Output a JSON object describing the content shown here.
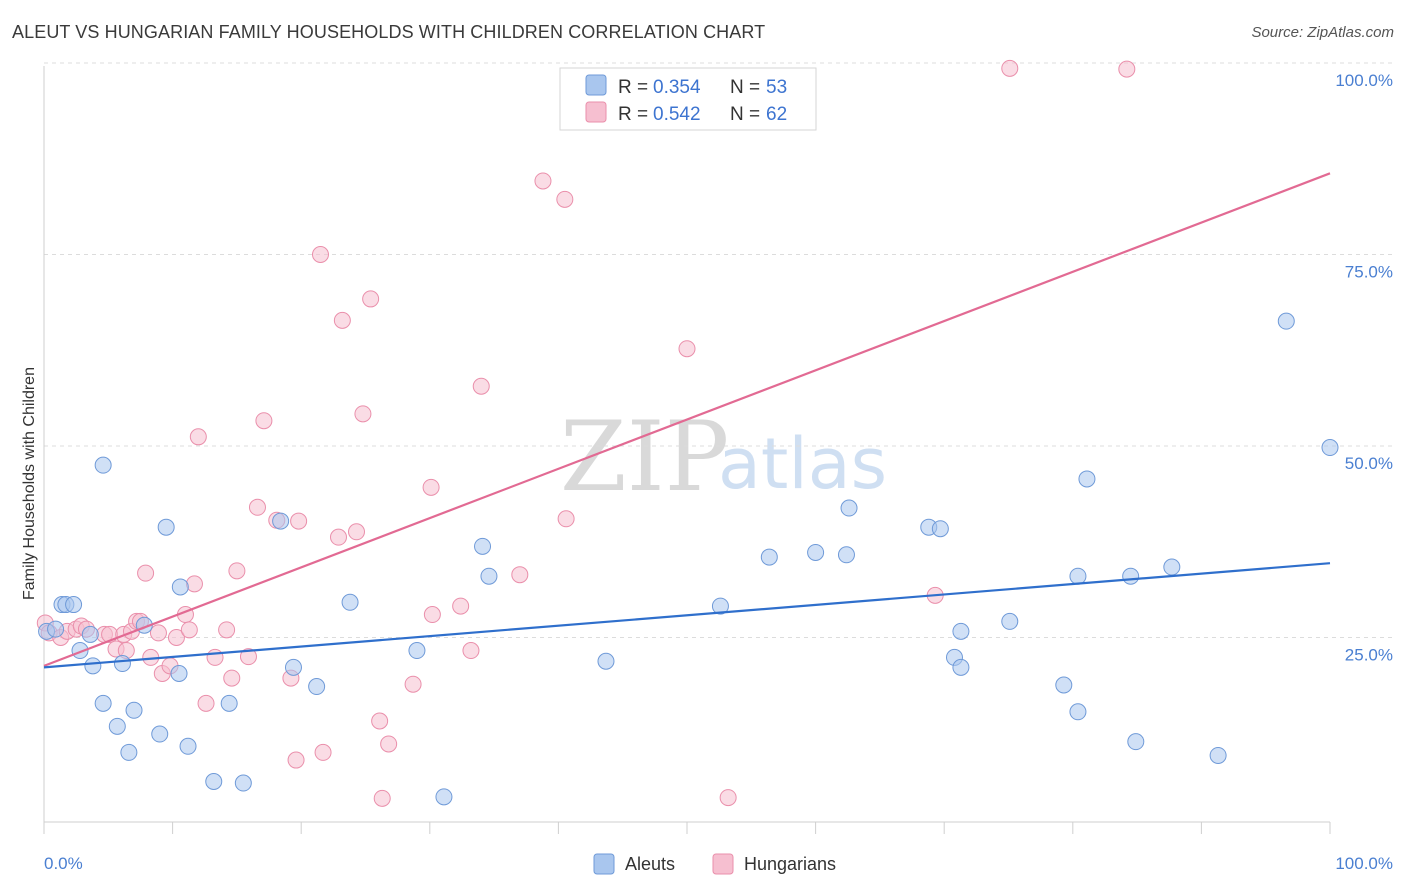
{
  "header": {
    "title": "ALEUT VS HUNGARIAN FAMILY HOUSEHOLDS WITH CHILDREN CORRELATION CHART",
    "source": "Source: ZipAtlas.com"
  },
  "watermark": {
    "zip": "ZIP",
    "atlas": "atlas"
  },
  "colors": {
    "aleut_fill": "#a9c6ee",
    "aleut_stroke": "#6f9ad8",
    "aleut_line": "#2f6fcc",
    "hungarian_fill": "#f6bfd0",
    "hungarian_stroke": "#ea8fab",
    "hungarian_line": "#e26a93",
    "tick_text": "#4a7fd1"
  },
  "legend": {
    "rows": [
      {
        "r_label": "R = ",
        "r_value": "0.354",
        "n_label": "N = ",
        "n_value": "53"
      },
      {
        "r_label": "R = ",
        "r_value": "0.542",
        "n_label": "N = ",
        "n_value": "62"
      }
    ]
  },
  "bottom_legend": {
    "aleuts": "Aleuts",
    "hungarians": "Hungarians"
  },
  "chart_data": {
    "type": "scatter",
    "title": "ALEUT VS HUNGARIAN FAMILY HOUSEHOLDS WITH CHILDREN CORRELATION CHART",
    "xlabel": "",
    "ylabel": "Family Households with Children",
    "xlim": [
      0,
      100
    ],
    "ylim": [
      0,
      100
    ],
    "x_tick_labels": [
      "0.0%",
      "100.0%"
    ],
    "y_tick_labels": [
      "25.0%",
      "50.0%",
      "75.0%",
      "100.0%"
    ],
    "y_ticks": [
      25,
      50,
      75,
      100
    ],
    "series": [
      {
        "name": "Aleuts",
        "R": 0.354,
        "N": 53,
        "trend": {
          "x": [
            0,
            100
          ],
          "y": [
            21.1,
            34.7
          ]
        },
        "points": [
          [
            0.2,
            25.8
          ],
          [
            0.9,
            26.1
          ],
          [
            1.4,
            29.3
          ],
          [
            1.7,
            29.3
          ],
          [
            2.3,
            29.3
          ],
          [
            2.8,
            23.3
          ],
          [
            3.6,
            25.4
          ],
          [
            3.8,
            21.3
          ],
          [
            4.6,
            47.5
          ],
          [
            4.6,
            16.4
          ],
          [
            5.7,
            13.4
          ],
          [
            6.1,
            21.6
          ],
          [
            6.6,
            10.0
          ],
          [
            7.0,
            15.5
          ],
          [
            7.8,
            26.6
          ],
          [
            9.0,
            12.4
          ],
          [
            9.5,
            39.4
          ],
          [
            10.5,
            20.3
          ],
          [
            10.6,
            31.6
          ],
          [
            11.2,
            10.8
          ],
          [
            13.2,
            6.2
          ],
          [
            14.4,
            16.4
          ],
          [
            15.5,
            6.0
          ],
          [
            18.4,
            40.2
          ],
          [
            19.4,
            21.1
          ],
          [
            21.2,
            18.6
          ],
          [
            23.8,
            29.6
          ],
          [
            29.0,
            23.3
          ],
          [
            31.1,
            4.2
          ],
          [
            34.1,
            36.9
          ],
          [
            34.6,
            33.0
          ],
          [
            43.7,
            21.9
          ],
          [
            52.6,
            29.1
          ],
          [
            56.4,
            35.5
          ],
          [
            60.0,
            36.1
          ],
          [
            62.4,
            35.8
          ],
          [
            62.6,
            41.9
          ],
          [
            68.8,
            39.4
          ],
          [
            69.7,
            39.2
          ],
          [
            70.8,
            22.4
          ],
          [
            71.3,
            21.1
          ],
          [
            71.3,
            25.8
          ],
          [
            75.1,
            27.1
          ],
          [
            79.3,
            18.8
          ],
          [
            80.4,
            15.3
          ],
          [
            80.4,
            33.0
          ],
          [
            81.1,
            45.7
          ],
          [
            84.9,
            11.4
          ],
          [
            84.5,
            33.0
          ],
          [
            87.7,
            34.2
          ],
          [
            91.3,
            9.6
          ],
          [
            96.6,
            66.3
          ],
          [
            100.0,
            49.8
          ]
        ]
      },
      {
        "name": "Hungarians",
        "R": 0.542,
        "N": 62,
        "trend": {
          "x": [
            0,
            100
          ],
          "y": [
            21.3,
            85.6
          ]
        },
        "points": [
          [
            0.1,
            26.9
          ],
          [
            0.4,
            25.6
          ],
          [
            1.3,
            25.0
          ],
          [
            1.8,
            25.8
          ],
          [
            2.5,
            26.1
          ],
          [
            2.9,
            26.5
          ],
          [
            3.3,
            26.1
          ],
          [
            4.7,
            25.4
          ],
          [
            5.1,
            25.4
          ],
          [
            5.6,
            23.5
          ],
          [
            6.2,
            25.4
          ],
          [
            6.4,
            23.3
          ],
          [
            6.8,
            25.8
          ],
          [
            7.2,
            27.1
          ],
          [
            7.5,
            27.1
          ],
          [
            7.9,
            33.4
          ],
          [
            8.3,
            22.4
          ],
          [
            8.9,
            25.6
          ],
          [
            9.2,
            20.3
          ],
          [
            9.8,
            21.3
          ],
          [
            10.3,
            25.0
          ],
          [
            11.0,
            28.0
          ],
          [
            11.3,
            26.0
          ],
          [
            11.7,
            32.0
          ],
          [
            12.0,
            51.2
          ],
          [
            12.6,
            16.4
          ],
          [
            13.3,
            22.4
          ],
          [
            14.2,
            26.0
          ],
          [
            14.6,
            19.7
          ],
          [
            15.0,
            33.7
          ],
          [
            15.9,
            22.5
          ],
          [
            16.6,
            42.0
          ],
          [
            17.1,
            53.3
          ],
          [
            18.1,
            40.3
          ],
          [
            19.2,
            19.7
          ],
          [
            19.6,
            9.0
          ],
          [
            19.8,
            40.2
          ],
          [
            21.5,
            75.0
          ],
          [
            21.7,
            10.0
          ],
          [
            22.9,
            38.1
          ],
          [
            23.2,
            66.4
          ],
          [
            24.3,
            38.8
          ],
          [
            24.8,
            54.2
          ],
          [
            25.4,
            69.2
          ],
          [
            26.1,
            14.1
          ],
          [
            26.3,
            4.0
          ],
          [
            26.8,
            11.1
          ],
          [
            28.7,
            18.9
          ],
          [
            30.1,
            44.6
          ],
          [
            30.2,
            28.0
          ],
          [
            32.4,
            29.1
          ],
          [
            33.2,
            23.3
          ],
          [
            34.0,
            57.8
          ],
          [
            37.0,
            33.2
          ],
          [
            38.8,
            84.6
          ],
          [
            40.5,
            82.2
          ],
          [
            40.6,
            40.5
          ],
          [
            50.0,
            62.7
          ],
          [
            53.2,
            4.1
          ],
          [
            69.3,
            30.5
          ],
          [
            75.1,
            99.3
          ],
          [
            84.2,
            99.2
          ]
        ]
      }
    ]
  }
}
